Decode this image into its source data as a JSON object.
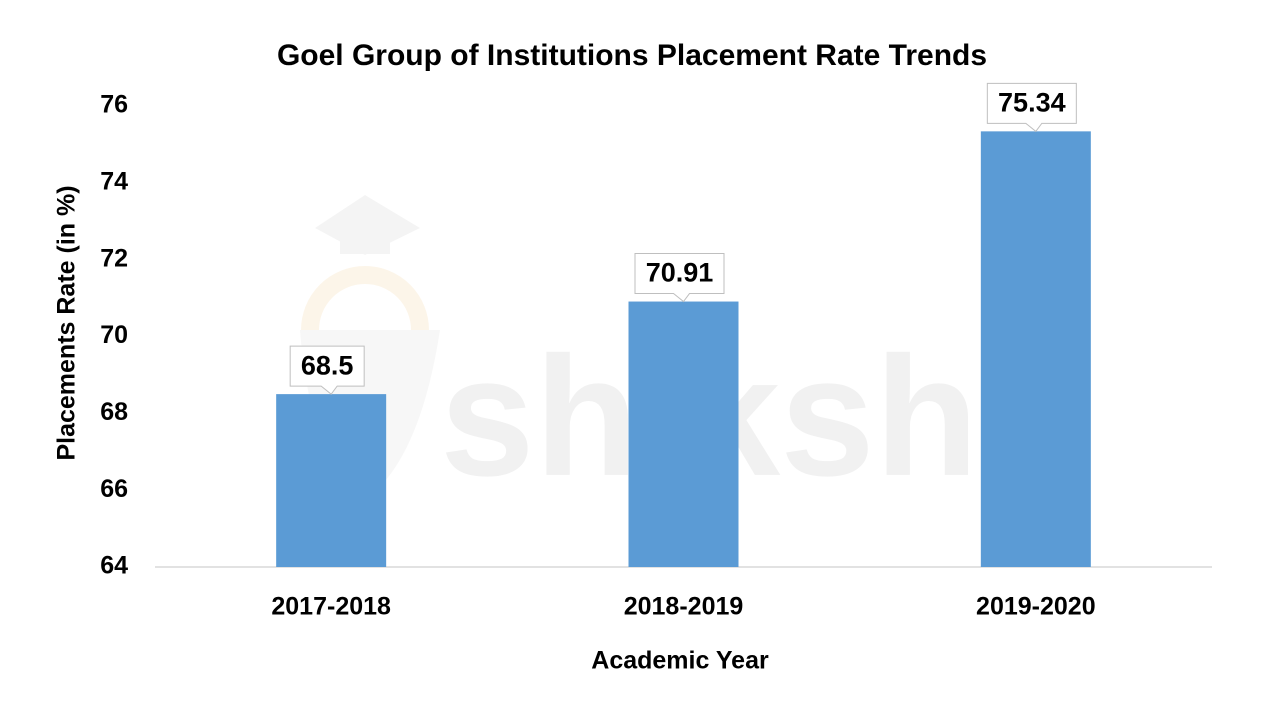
{
  "chart_data": {
    "type": "bar",
    "title": "Goel Group of Institutions  Placement Rate Trends",
    "x_label": "Academic Year",
    "y_label": "Placements Rate (in %)",
    "watermark": "shiksha",
    "categories": [
      "2017-2018",
      "2018-2019",
      "2019-2020"
    ],
    "values": [
      68.5,
      70.91,
      75.34
    ],
    "color": "#5b9bd5",
    "ylim": [
      64,
      76
    ],
    "yticks": [
      64,
      66,
      68,
      70,
      72,
      74,
      76
    ],
    "grid": false
  }
}
